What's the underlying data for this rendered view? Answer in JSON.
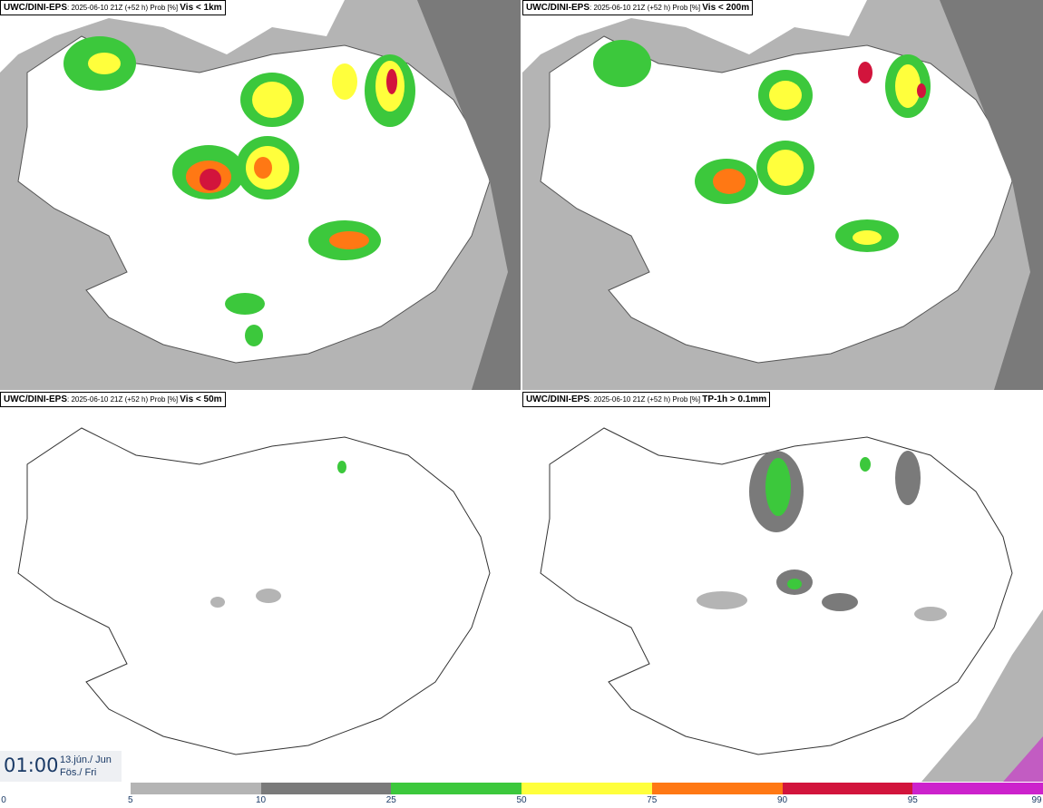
{
  "panels": [
    {
      "source": "UWC/DINI-EPS",
      "run": ": 2025-06-10 21Z (+52 h) Prob [%] ",
      "field": "Vis < 1km"
    },
    {
      "source": "UWC/DINI-EPS",
      "run": ": 2025-06-10 21Z (+52 h) Prob [%] ",
      "field": "Vis < 200m"
    },
    {
      "source": "UWC/DINI-EPS",
      "run": ": 2025-06-10 21Z (+52 h) Prob [%] ",
      "field": "Vis < 50m"
    },
    {
      "source": "UWC/DINI-EPS",
      "run": ": 2025-06-10 21Z (+52 h) Prob [%] ",
      "field": "TP-1h > 0.1mm"
    }
  ],
  "valid_time": {
    "time": "01:00",
    "date": "13.jún./ Jun",
    "day": "Fös./ Fri"
  },
  "colorbar": {
    "ticks": [
      "0",
      "5",
      "10",
      "25",
      "50",
      "75",
      "90",
      "95",
      "99"
    ],
    "colors": [
      "#ffffff",
      "#b4b4b4",
      "#7a7a7a",
      "#3cc83c",
      "#ffff3c",
      "#ff7814",
      "#d2143c",
      "#cc22cc"
    ]
  },
  "icons": {
    "map": "iceland-map-icon"
  }
}
